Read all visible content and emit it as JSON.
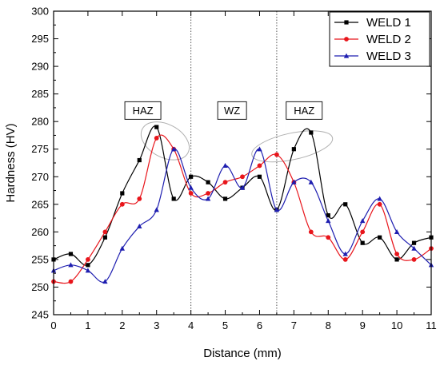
{
  "chart_data": {
    "type": "line",
    "xlabel": "Distance (mm)",
    "ylabel": "Hardness (HV)",
    "xlim": [
      0,
      11
    ],
    "ylim": [
      245,
      300
    ],
    "x_ticks": [
      0,
      1,
      2,
      3,
      4,
      5,
      6,
      7,
      8,
      9,
      10,
      11
    ],
    "y_ticks": [
      245,
      250,
      255,
      260,
      265,
      270,
      275,
      280,
      285,
      290,
      295,
      300
    ],
    "grid": false,
    "legend_position": "top-right",
    "series": [
      {
        "name": "WELD 1",
        "color": "#000000",
        "marker": "square",
        "x": [
          0,
          0.5,
          1,
          1.5,
          2,
          2.5,
          3,
          3.5,
          4,
          4.5,
          5,
          5.5,
          6,
          6.5,
          7,
          7.5,
          8,
          8.5,
          9,
          9.5,
          10,
          10.5,
          11
        ],
        "values": [
          255,
          256,
          254,
          259,
          267,
          273,
          279,
          266,
          270,
          269,
          266,
          268,
          270,
          264,
          275,
          278,
          263,
          265,
          258,
          259,
          255,
          258,
          259
        ]
      },
      {
        "name": "WELD 2",
        "color": "#e8151b",
        "marker": "circle",
        "x": [
          0,
          0.5,
          1,
          1.5,
          2,
          2.5,
          3,
          3.5,
          4,
          4.5,
          5,
          5.5,
          6,
          6.5,
          7,
          7.5,
          8,
          8.5,
          9,
          9.5,
          10,
          10.5,
          11
        ],
        "values": [
          251,
          251,
          255,
          260,
          265,
          266,
          277,
          275,
          267,
          267,
          269,
          270,
          272,
          274,
          269,
          260,
          259,
          255,
          260,
          265,
          256,
          255,
          257
        ]
      },
      {
        "name": "WELD 3",
        "color": "#1e1eb0",
        "marker": "triangle",
        "x": [
          0,
          0.5,
          1,
          1.5,
          2,
          2.5,
          3,
          3.5,
          4,
          4.5,
          5,
          5.5,
          6,
          6.5,
          7,
          7.5,
          8,
          8.5,
          9,
          9.5,
          10,
          10.5,
          11
        ],
        "values": [
          253,
          254,
          253,
          251,
          257,
          261,
          264,
          275,
          268,
          266,
          272,
          268,
          275,
          264,
          269,
          269,
          262,
          256,
          262,
          266,
          260,
          257,
          254
        ]
      }
    ],
    "vertical_lines": [
      4,
      6.5
    ],
    "annotations": [
      {
        "text": "HAZ",
        "x": 2.6,
        "y": 282
      },
      {
        "text": "WZ",
        "x": 5.2,
        "y": 282
      },
      {
        "text": "HAZ",
        "x": 7.3,
        "y": 282
      }
    ],
    "ellipses": [
      {
        "cx": 3.25,
        "cy": 276.5,
        "rx_data": 0.75,
        "ry_data": 3.0,
        "rotate": 28
      },
      {
        "cx": 6.95,
        "cy": 275.5,
        "rx_data": 1.2,
        "ry_data": 2.4,
        "rotate": -12
      }
    ]
  }
}
